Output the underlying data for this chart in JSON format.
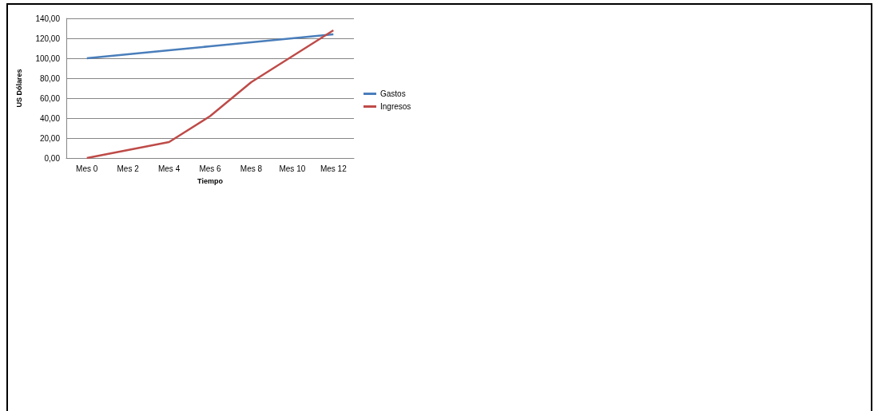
{
  "chart_data": {
    "type": "line",
    "xlabel": "Tiempo",
    "ylabel": "US Dólares",
    "categories": [
      "Mes 0",
      "Mes 2",
      "Mes 4",
      "Mes 6",
      "Mes 8",
      "Mes 10",
      "Mes 12"
    ],
    "series": [
      {
        "name": "Gastos",
        "color": "#4a7ebb",
        "values": [
          100,
          104,
          108,
          112,
          116,
          120,
          124
        ]
      },
      {
        "name": "Ingresos",
        "color": "#be4b48",
        "values": [
          0,
          8,
          16,
          42,
          76,
          102,
          128
        ]
      }
    ],
    "ylim": [
      0,
      140
    ],
    "yticks": [
      {
        "value": 0,
        "label": "0,00"
      },
      {
        "value": 20,
        "label": "20,00"
      },
      {
        "value": 40,
        "label": "40,00"
      },
      {
        "value": 60,
        "label": "60,00"
      },
      {
        "value": 80,
        "label": "80,00"
      },
      {
        "value": 100,
        "label": "100,00"
      },
      {
        "value": 120,
        "label": "120,00"
      },
      {
        "value": 140,
        "label": "140,00"
      }
    ],
    "grid": "y",
    "legend": "right",
    "marker": "none",
    "line_style": "solid"
  }
}
